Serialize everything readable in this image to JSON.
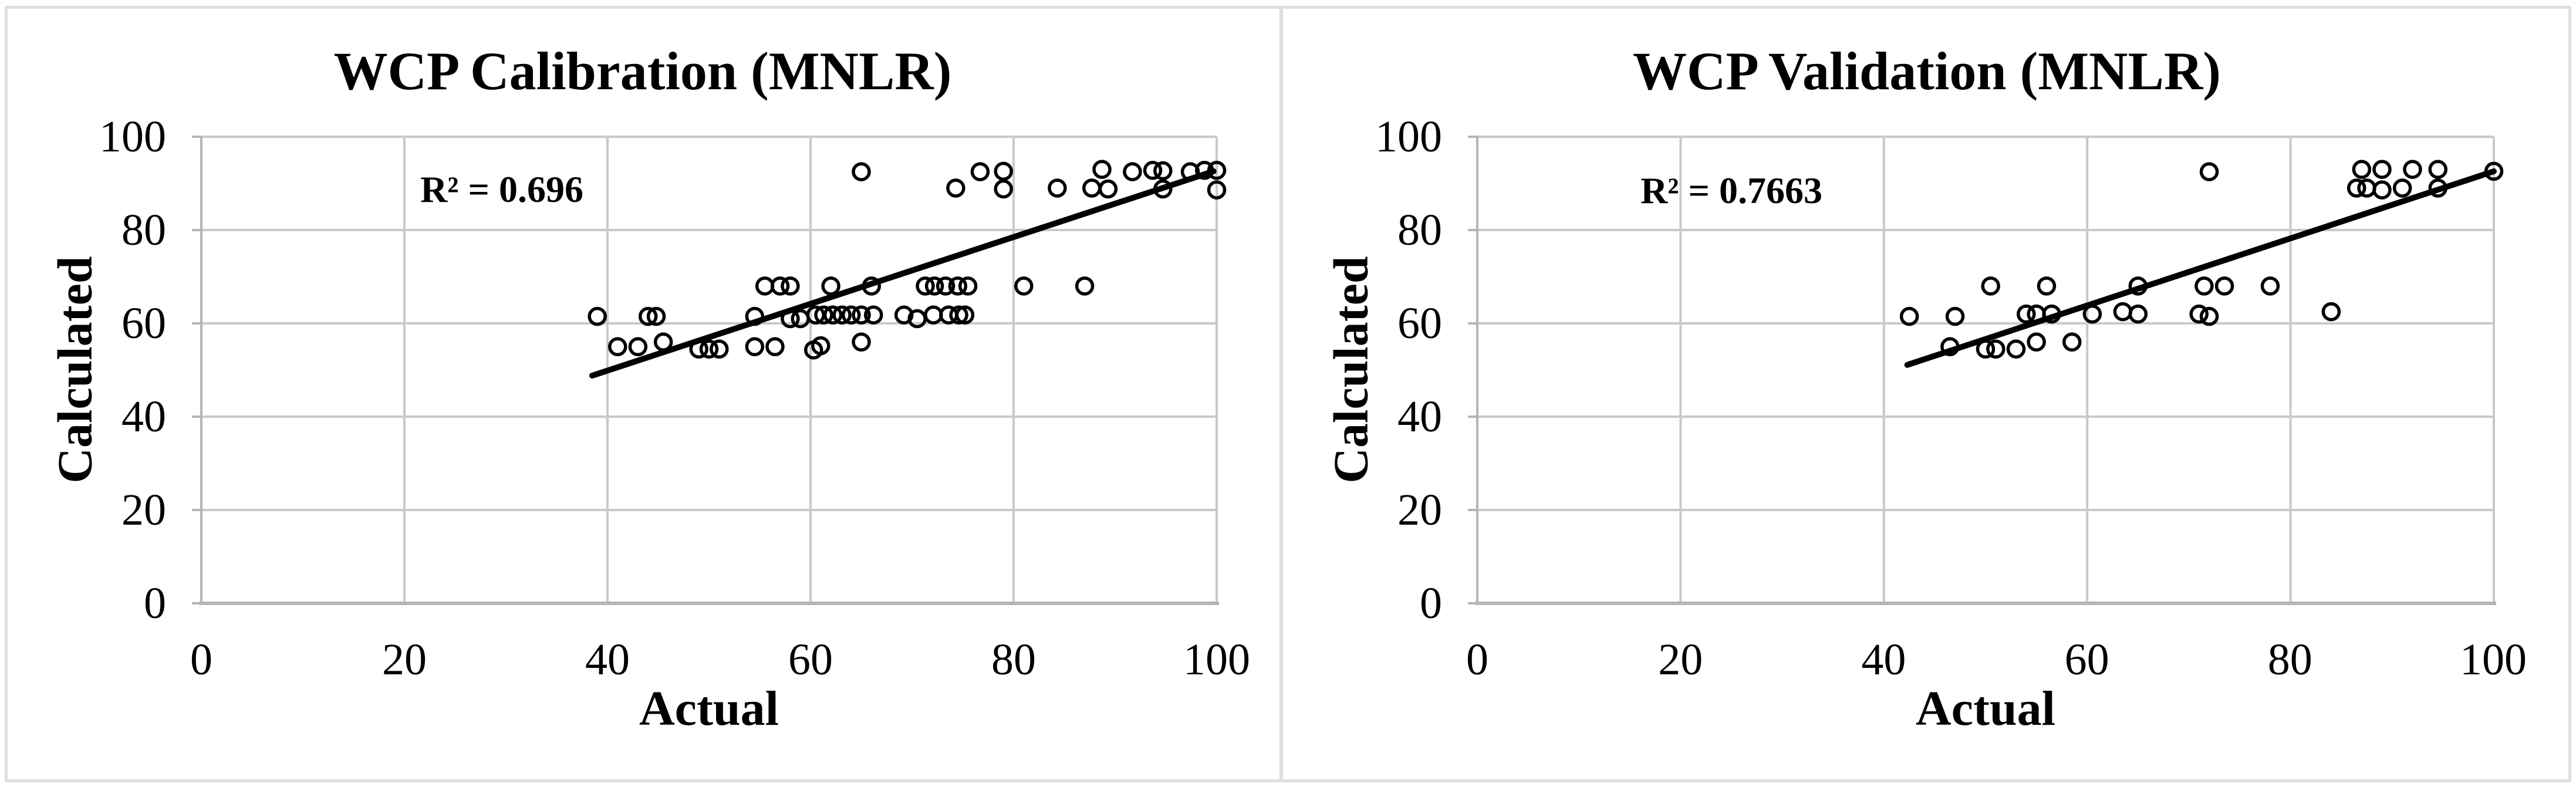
{
  "figure": {
    "background": "#ffffff",
    "border_color": "#dedede",
    "gridline_color": "#c9c9c9",
    "axis_line_color": "#b5b5b5",
    "marker_color": "#000000",
    "trendline_color": "#000000"
  },
  "chart_data": [
    {
      "type": "scatter",
      "title": "WCP Calibration (MNLR)",
      "xlabel": "Actual",
      "ylabel": "Calculated",
      "xlim": [
        0,
        100
      ],
      "ylim": [
        0,
        100
      ],
      "x_ticks": [
        0,
        20,
        40,
        60,
        80,
        100
      ],
      "y_ticks": [
        0,
        20,
        40,
        60,
        80,
        100
      ],
      "grid": true,
      "legend": "none",
      "annotation": {
        "text": "R² = 0.696",
        "x": 29.6,
        "y": 88.6
      },
      "r2_value": 0.696,
      "trendline": {
        "x1": 38.5,
        "y1": 48.8,
        "x2": 99.7,
        "y2": 92.6
      },
      "points": [
        [
          39,
          61.5
        ],
        [
          41,
          55
        ],
        [
          43,
          55
        ],
        [
          44,
          61.5
        ],
        [
          44.8,
          61.5
        ],
        [
          45.5,
          56
        ],
        [
          49,
          54.5
        ],
        [
          50,
          54.5
        ],
        [
          51,
          54.5
        ],
        [
          54.5,
          61.5
        ],
        [
          54.5,
          55
        ],
        [
          56.5,
          55
        ],
        [
          55.5,
          68
        ],
        [
          57,
          68
        ],
        [
          58,
          68
        ],
        [
          58,
          61
        ],
        [
          59,
          61
        ],
        [
          60.3,
          54.3
        ],
        [
          61,
          55.2
        ],
        [
          65,
          56
        ],
        [
          60.5,
          61.8
        ],
        [
          61.3,
          61.8
        ],
        [
          62.2,
          61.8
        ],
        [
          63.1,
          61.8
        ],
        [
          64,
          61.8
        ],
        [
          65,
          61.8
        ],
        [
          66.2,
          61.8
        ],
        [
          62,
          68
        ],
        [
          66,
          68
        ],
        [
          69.2,
          61.8
        ],
        [
          70.5,
          61
        ],
        [
          72.1,
          61.8
        ],
        [
          73.6,
          61.8
        ],
        [
          74.6,
          61.8
        ],
        [
          75.2,
          61.8
        ],
        [
          71.3,
          68
        ],
        [
          72.2,
          68
        ],
        [
          73.3,
          68
        ],
        [
          74.5,
          68
        ],
        [
          75.5,
          68
        ],
        [
          81,
          68
        ],
        [
          87,
          68
        ],
        [
          65,
          92.5
        ],
        [
          74.3,
          89
        ],
        [
          76.7,
          92.5
        ],
        [
          79,
          92.6
        ],
        [
          79,
          88.8
        ],
        [
          84.3,
          89
        ],
        [
          87.7,
          89
        ],
        [
          88.7,
          93
        ],
        [
          89.3,
          88.8
        ],
        [
          91.7,
          92.5
        ],
        [
          93.7,
          92.8
        ],
        [
          94.7,
          92.7
        ],
        [
          94.7,
          88.8
        ],
        [
          97.4,
          92.5
        ],
        [
          98.8,
          92.8
        ],
        [
          100,
          92.8
        ],
        [
          100,
          88.6
        ]
      ]
    },
    {
      "type": "scatter",
      "title": "WCP Validation (MNLR)",
      "xlabel": "Actual",
      "ylabel": "Calculated",
      "xlim": [
        0,
        100
      ],
      "ylim": [
        0,
        100
      ],
      "x_ticks": [
        0,
        20,
        40,
        60,
        80,
        100
      ],
      "y_ticks": [
        0,
        20,
        40,
        60,
        80,
        100
      ],
      "grid": true,
      "legend": "none",
      "annotation": {
        "text": "R² = 0.7663",
        "x": 25,
        "y": 88.4
      },
      "r2_value": 0.7663,
      "trendline": {
        "x1": 42.3,
        "y1": 51.1,
        "x2": 100,
        "y2": 92.6
      },
      "points": [
        [
          42.5,
          61.5
        ],
        [
          46.5,
          55
        ],
        [
          47,
          61.5
        ],
        [
          50,
          54.5
        ],
        [
          50.5,
          68
        ],
        [
          51,
          54.5
        ],
        [
          53,
          54.5
        ],
        [
          54,
          62
        ],
        [
          55,
          62
        ],
        [
          56.5,
          62
        ],
        [
          55,
          56
        ],
        [
          56,
          68
        ],
        [
          58.5,
          56
        ],
        [
          60.5,
          62
        ],
        [
          63.5,
          62.5
        ],
        [
          65,
          62
        ],
        [
          65,
          68
        ],
        [
          71,
          62
        ],
        [
          71.5,
          68
        ],
        [
          72,
          61.5
        ],
        [
          72,
          92.5
        ],
        [
          73.5,
          68
        ],
        [
          78,
          68
        ],
        [
          84,
          62.5
        ],
        [
          86.5,
          89
        ],
        [
          87,
          93
        ],
        [
          87.5,
          89
        ],
        [
          89,
          93
        ],
        [
          89,
          88.6
        ],
        [
          91,
          89
        ],
        [
          92,
          93
        ],
        [
          94.5,
          93
        ],
        [
          94.5,
          89
        ],
        [
          100,
          92.6
        ]
      ]
    }
  ]
}
